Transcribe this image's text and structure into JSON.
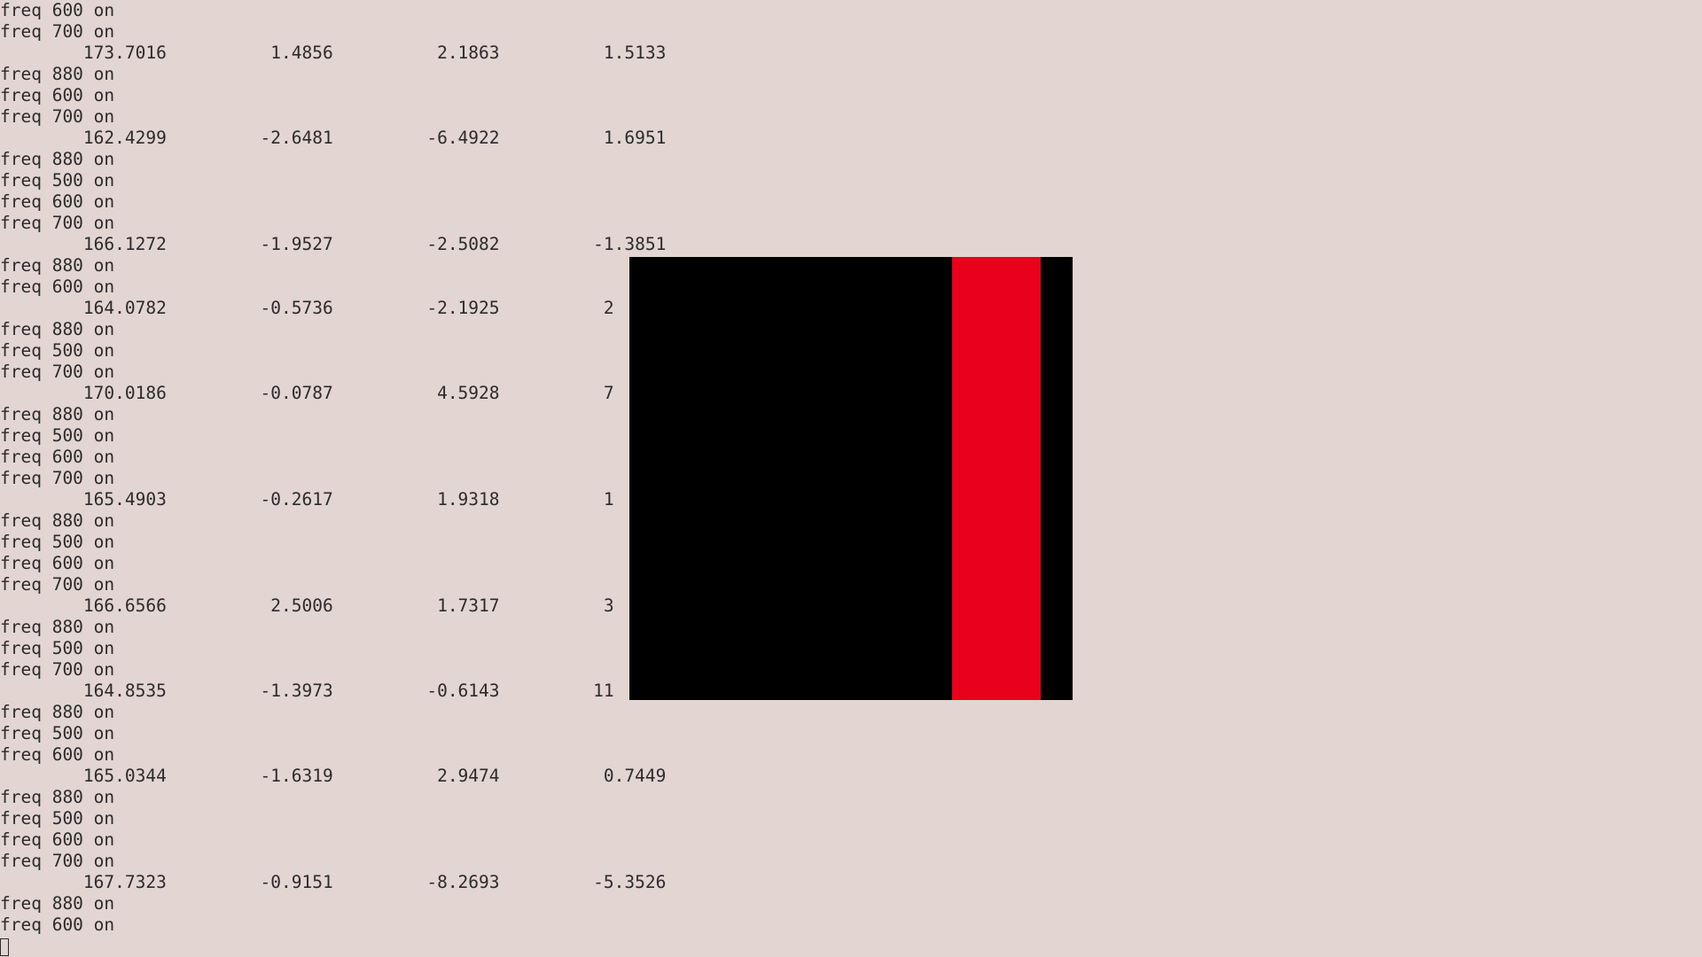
{
  "terminal": {
    "lines": [
      "freq 600 on",
      "freq 700 on",
      "        173.7016          1.4856          2.1863          1.5133",
      "freq 880 on",
      "freq 600 on",
      "freq 700 on",
      "        162.4299         -2.6481         -6.4922          1.6951",
      "freq 880 on",
      "freq 500 on",
      "freq 600 on",
      "freq 700 on",
      "        166.1272         -1.9527         -2.5082         -1.3851",
      "freq 880 on",
      "freq 600 on",
      "        164.0782         -0.5736         -2.1925          2",
      "freq 880 on",
      "freq 500 on",
      "freq 700 on",
      "        170.0186         -0.0787          4.5928          7",
      "freq 880 on",
      "freq 500 on",
      "freq 600 on",
      "freq 700 on",
      "        165.4903         -0.2617          1.9318          1",
      "freq 880 on",
      "freq 500 on",
      "freq 600 on",
      "freq 700 on",
      "        166.6566          2.5006          1.7317          3",
      "freq 880 on",
      "freq 500 on",
      "freq 700 on",
      "        164.8535         -1.3973         -0.6143         11",
      "freq 880 on",
      "freq 500 on",
      "freq 600 on",
      "        165.0344         -1.6319          2.9474          0.7449",
      "freq 880 on",
      "freq 500 on",
      "freq 600 on",
      "freq 700 on",
      "        167.7323         -0.9151         -8.2693         -5.3526",
      "freq 880 on",
      "freq 600 on"
    ]
  },
  "overlay": {
    "background_color": "#000000",
    "bar_color": "#e8001c"
  }
}
